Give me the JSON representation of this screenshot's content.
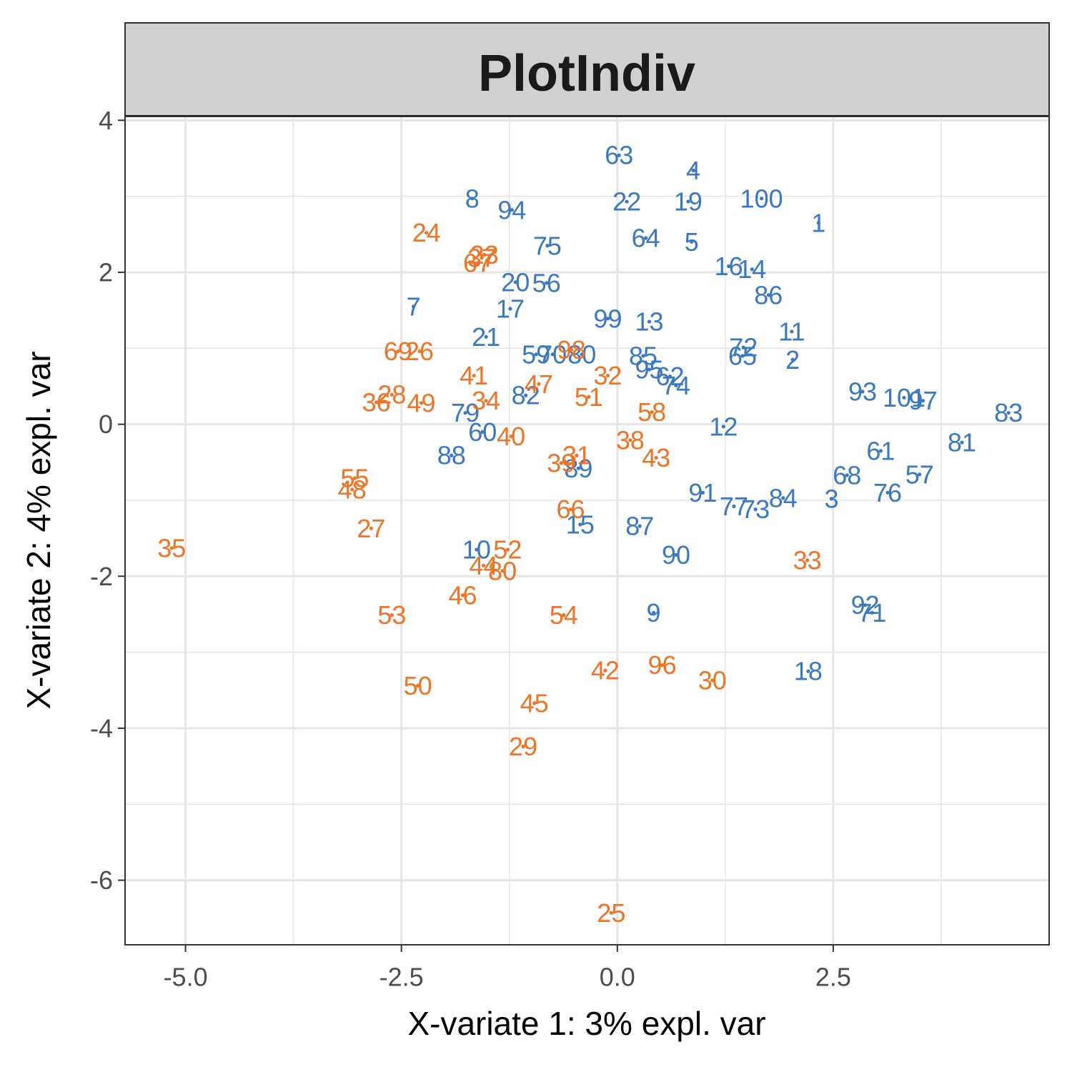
{
  "chart_data": {
    "type": "scatter",
    "title": "PlotIndiv",
    "xlabel": "X-variate 1: 3% expl. var",
    "ylabel": "X-variate 2: 4% expl. var",
    "xlim": [
      -5.7,
      5.0
    ],
    "ylim": [
      -6.85,
      4.05
    ],
    "xticks": [
      -5.0,
      -2.5,
      0.0,
      2.5
    ],
    "xtick_labels": [
      "-5.0",
      "-2.5",
      "0.0",
      "2.5"
    ],
    "yticks": [
      -6,
      -4,
      -2,
      0,
      2,
      4
    ],
    "ytick_labels": [
      "-6",
      "-4",
      "-2",
      "0",
      "2",
      "4"
    ],
    "grid": true,
    "legend": "none",
    "colors": {
      "blue": "#3a78bf",
      "orange": "#ee7427",
      "panel_bg": "#ffffff",
      "strip_bg": "#d0d0d0",
      "grid": "#e5e5e5"
    },
    "series": [
      {
        "color": "#3a78bf",
        "points": [
          {
            "label": "1",
            "x": 2.33,
            "y": 2.65
          },
          {
            "label": "2",
            "x": 2.03,
            "y": 0.85
          },
          {
            "label": "3",
            "x": 2.48,
            "y": -0.98
          },
          {
            "label": "4",
            "x": 0.88,
            "y": 3.34
          },
          {
            "label": "5",
            "x": 0.86,
            "y": 2.4
          },
          {
            "label": "7",
            "x": -2.36,
            "y": 1.55
          },
          {
            "label": "8",
            "x": -1.68,
            "y": 2.97
          },
          {
            "label": "9",
            "x": 0.42,
            "y": -2.48
          },
          {
            "label": "10",
            "x": -1.63,
            "y": -1.65
          },
          {
            "label": "11",
            "x": 2.02,
            "y": 1.22
          },
          {
            "label": "12",
            "x": 1.23,
            "y": -0.03
          },
          {
            "label": "13",
            "x": 0.37,
            "y": 1.35
          },
          {
            "label": "14",
            "x": 1.56,
            "y": 2.04
          },
          {
            "label": "15",
            "x": -0.43,
            "y": -1.32
          },
          {
            "label": "16",
            "x": 1.29,
            "y": 2.08
          },
          {
            "label": "17",
            "x": -1.24,
            "y": 1.52
          },
          {
            "label": "18",
            "x": 2.21,
            "y": -3.25
          },
          {
            "label": "19",
            "x": 0.82,
            "y": 2.93
          },
          {
            "label": "20",
            "x": -1.18,
            "y": 1.87
          },
          {
            "label": "21",
            "x": -1.52,
            "y": 1.15
          },
          {
            "label": "22",
            "x": 0.11,
            "y": 2.93
          },
          {
            "label": "56",
            "x": -0.82,
            "y": 1.86
          },
          {
            "label": "57",
            "x": 3.5,
            "y": -0.66
          },
          {
            "label": "59",
            "x": -0.94,
            "y": 0.92
          },
          {
            "label": "60",
            "x": -1.56,
            "y": -0.1
          },
          {
            "label": "61",
            "x": 3.05,
            "y": -0.35
          },
          {
            "label": "62",
            "x": 0.61,
            "y": 0.63
          },
          {
            "label": "63",
            "x": 0.02,
            "y": 3.54
          },
          {
            "label": "64",
            "x": 0.33,
            "y": 2.45
          },
          {
            "label": "65",
            "x": 1.45,
            "y": 0.9
          },
          {
            "label": "68",
            "x": 2.66,
            "y": -0.67
          },
          {
            "label": "70",
            "x": -0.75,
            "y": 0.92
          },
          {
            "label": "71",
            "x": 2.95,
            "y": -2.48
          },
          {
            "label": "72",
            "x": 1.46,
            "y": 1.01
          },
          {
            "label": "73",
            "x": 1.6,
            "y": -1.12
          },
          {
            "label": "74",
            "x": 0.68,
            "y": 0.51
          },
          {
            "label": "75",
            "x": -0.81,
            "y": 2.35
          },
          {
            "label": "76",
            "x": 3.13,
            "y": -0.9
          },
          {
            "label": "77",
            "x": 1.35,
            "y": -1.08
          },
          {
            "label": "79",
            "x": -1.76,
            "y": 0.15
          },
          {
            "label": "80",
            "x": -0.41,
            "y": 0.92
          },
          {
            "label": "81",
            "x": 3.99,
            "y": -0.24
          },
          {
            "label": "82",
            "x": -1.06,
            "y": 0.38
          },
          {
            "label": "83",
            "x": 4.53,
            "y": 0.15
          },
          {
            "label": "84",
            "x": 1.92,
            "y": -0.97
          },
          {
            "label": "85",
            "x": 0.3,
            "y": 0.9
          },
          {
            "label": "86",
            "x": 1.75,
            "y": 1.7
          },
          {
            "label": "87",
            "x": 0.26,
            "y": -1.34
          },
          {
            "label": "88",
            "x": -1.92,
            "y": -0.41
          },
          {
            "label": "89",
            "x": -0.45,
            "y": -0.58
          },
          {
            "label": "90",
            "x": 0.68,
            "y": -1.72
          },
          {
            "label": "91",
            "x": 0.99,
            "y": -0.9
          },
          {
            "label": "92",
            "x": 2.87,
            "y": -2.38
          },
          {
            "label": "93",
            "x": 2.84,
            "y": 0.43
          },
          {
            "label": "94",
            "x": -1.22,
            "y": 2.82
          },
          {
            "label": "95",
            "x": 0.37,
            "y": 0.72
          },
          {
            "label": "97",
            "x": 3.54,
            "y": 0.31
          },
          {
            "label": "99",
            "x": -0.11,
            "y": 1.39
          },
          {
            "label": "100",
            "x": 1.67,
            "y": 2.97
          },
          {
            "label": "101",
            "x": 3.32,
            "y": 0.35
          }
        ]
      },
      {
        "color": "#ee7427",
        "points": [
          {
            "label": "23",
            "x": -1.54,
            "y": 2.23
          },
          {
            "label": "24",
            "x": -2.21,
            "y": 2.52
          },
          {
            "label": "25",
            "x": -0.07,
            "y": -6.43
          },
          {
            "label": "26",
            "x": -2.29,
            "y": 0.96
          },
          {
            "label": "27",
            "x": -2.85,
            "y": -1.37
          },
          {
            "label": "28",
            "x": -2.61,
            "y": 0.39
          },
          {
            "label": "29",
            "x": -1.09,
            "y": -4.24
          },
          {
            "label": "30",
            "x": 1.1,
            "y": -3.37
          },
          {
            "label": "31",
            "x": -0.47,
            "y": -0.41
          },
          {
            "label": "32",
            "x": -0.11,
            "y": 0.64
          },
          {
            "label": "33",
            "x": 2.2,
            "y": -1.79
          },
          {
            "label": "34",
            "x": -1.52,
            "y": 0.31
          },
          {
            "label": "35",
            "x": -5.16,
            "y": -1.63
          },
          {
            "label": "36",
            "x": -2.79,
            "y": 0.29
          },
          {
            "label": "37",
            "x": -1.57,
            "y": 2.19
          },
          {
            "label": "38",
            "x": 0.15,
            "y": -0.21
          },
          {
            "label": "39",
            "x": -0.65,
            "y": -0.51
          },
          {
            "label": "40",
            "x": -1.23,
            "y": -0.16
          },
          {
            "label": "41",
            "x": -1.66,
            "y": 0.64
          },
          {
            "label": "42",
            "x": -0.14,
            "y": -3.24
          },
          {
            "label": "43",
            "x": 0.45,
            "y": -0.44
          },
          {
            "label": "44",
            "x": -1.55,
            "y": -1.86
          },
          {
            "label": "45",
            "x": -0.96,
            "y": -3.67
          },
          {
            "label": "46",
            "x": -1.79,
            "y": -2.25
          },
          {
            "label": "47",
            "x": -0.91,
            "y": 0.53
          },
          {
            "label": "48",
            "x": -3.07,
            "y": -0.86
          },
          {
            "label": "49",
            "x": -2.27,
            "y": 0.28
          },
          {
            "label": "50",
            "x": -2.31,
            "y": -3.44
          },
          {
            "label": "51",
            "x": -0.33,
            "y": 0.36
          },
          {
            "label": "52",
            "x": -1.27,
            "y": -1.65
          },
          {
            "label": "53",
            "x": -2.61,
            "y": -2.51
          },
          {
            "label": "54",
            "x": -0.62,
            "y": -2.51
          },
          {
            "label": "55",
            "x": -3.04,
            "y": -0.71
          },
          {
            "label": "58",
            "x": 0.4,
            "y": 0.16
          },
          {
            "label": "66",
            "x": -0.54,
            "y": -1.12
          },
          {
            "label": "67",
            "x": -1.62,
            "y": 2.12
          },
          {
            "label": "69",
            "x": -2.54,
            "y": 0.96
          },
          {
            "label": "80",
            "x": -1.33,
            "y": -1.93
          },
          {
            "label": "96",
            "x": 0.52,
            "y": -3.17
          },
          {
            "label": "98",
            "x": -0.53,
            "y": 0.98
          }
        ]
      }
    ]
  }
}
